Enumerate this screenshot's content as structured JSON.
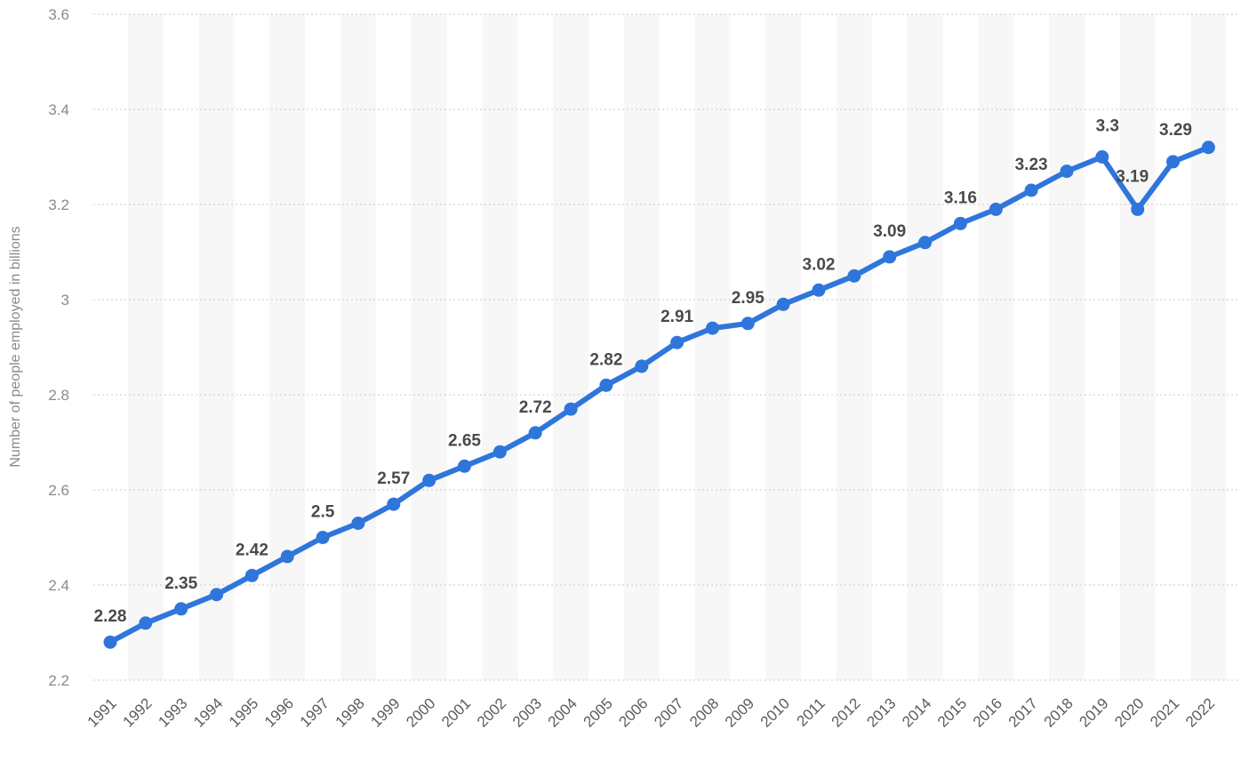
{
  "chart_data": {
    "type": "line",
    "title": "",
    "xlabel": "",
    "ylabel": "Number of people employed in billions",
    "ylim": [
      2.2,
      3.6
    ],
    "yticks": [
      "2.2",
      "2.4",
      "2.6",
      "2.8",
      "3",
      "3.2",
      "3.4",
      "3.6"
    ],
    "grid": true,
    "line_color": "#2f76dc",
    "label_color": "#4a4a4a",
    "band_color": "#f7f7f7",
    "x": [
      "1991",
      "1992",
      "1993",
      "1994",
      "1995",
      "1996",
      "1997",
      "1998",
      "1999",
      "2000",
      "2001",
      "2002",
      "2003",
      "2004",
      "2005",
      "2006",
      "2007",
      "2008",
      "2009",
      "2010",
      "2011",
      "2012",
      "2013",
      "2014",
      "2015",
      "2016",
      "2017",
      "2018",
      "2019",
      "2020",
      "2021",
      "2022"
    ],
    "values": [
      2.28,
      2.32,
      2.35,
      2.38,
      2.42,
      2.46,
      2.5,
      2.53,
      2.57,
      2.62,
      2.65,
      2.68,
      2.72,
      2.77,
      2.82,
      2.86,
      2.91,
      2.94,
      2.95,
      2.99,
      3.02,
      3.05,
      3.09,
      3.12,
      3.16,
      3.19,
      3.23,
      3.27,
      3.3,
      3.19,
      3.29,
      3.32
    ],
    "data_labels": [
      {
        "x": "1991",
        "text": "2.28"
      },
      {
        "x": "1993",
        "text": "2.35"
      },
      {
        "x": "1995",
        "text": "2.42"
      },
      {
        "x": "1997",
        "text": "2.5"
      },
      {
        "x": "1999",
        "text": "2.57"
      },
      {
        "x": "2001",
        "text": "2.65"
      },
      {
        "x": "2003",
        "text": "2.72"
      },
      {
        "x": "2005",
        "text": "2.82"
      },
      {
        "x": "2007",
        "text": "2.91"
      },
      {
        "x": "2009",
        "text": "2.95"
      },
      {
        "x": "2011",
        "text": "3.02"
      },
      {
        "x": "2013",
        "text": "3.09"
      },
      {
        "x": "2015",
        "text": "3.16"
      },
      {
        "x": "2017",
        "text": "3.23"
      },
      {
        "x": "2019",
        "text": "3.3"
      },
      {
        "x": "2020",
        "text": "3.19"
      },
      {
        "x": "2021",
        "text": "3.29"
      }
    ]
  }
}
